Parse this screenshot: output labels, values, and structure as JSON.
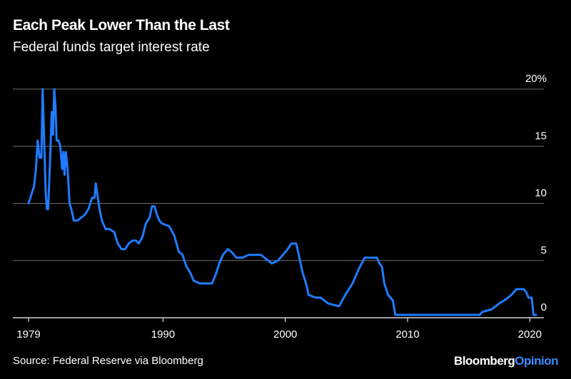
{
  "header": {
    "title": "Each Peak Lower Than the Last",
    "subtitle": "Federal funds target interest rate"
  },
  "footer": {
    "source": "Source: Federal Reserve via Bloomberg",
    "brand_main": "Bloomberg",
    "brand_accent": "Opinion"
  },
  "colors": {
    "background": "#000000",
    "line": "#1f7bff",
    "grid": "#6e6e6e",
    "text": "#ffffff",
    "brand_accent": "#3d8bff"
  },
  "chart_data": {
    "type": "line",
    "title": "Each Peak Lower Than the Last",
    "subtitle": "Federal funds target interest rate",
    "xlabel": "",
    "ylabel": "",
    "xlim": [
      1979,
      2021.5
    ],
    "ylim": [
      0,
      20
    ],
    "x_ticks": [
      1979,
      1990,
      2000,
      2010,
      2020
    ],
    "x_tick_labels": [
      "1979",
      "1990",
      "2000",
      "2010",
      "2020"
    ],
    "y_ticks": [
      0,
      5,
      10,
      15,
      20
    ],
    "y_tick_labels": [
      "0",
      "5",
      "10",
      "15",
      "20%"
    ],
    "grid": "horizontal",
    "series": [
      {
        "x": [
          1979.0,
          1979.15,
          1979.3,
          1979.45,
          1979.6,
          1979.75,
          1979.9,
          1980.05,
          1980.15,
          1980.25,
          1980.4,
          1980.5,
          1980.6,
          1980.75,
          1980.9,
          1981.0,
          1981.1,
          1981.2,
          1981.3,
          1981.45,
          1981.6,
          1981.75,
          1981.85,
          1981.95,
          1982.05,
          1982.2,
          1982.35,
          1982.5,
          1982.6,
          1982.7,
          1982.8,
          1982.9,
          1983.0,
          1983.3,
          1983.6,
          1983.9,
          1984.2,
          1984.4,
          1984.5,
          1984.6,
          1984.8,
          1985.0,
          1985.3,
          1985.6,
          1986.0,
          1986.3,
          1986.6,
          1986.9,
          1987.2,
          1987.5,
          1987.8,
          1988.0,
          1988.3,
          1988.6,
          1988.9,
          1989.1,
          1989.3,
          1989.5,
          1989.7,
          1989.9,
          1990.5,
          1990.9,
          1991.3,
          1991.6,
          1991.9,
          1992.2,
          1992.5,
          1993.0,
          1993.5,
          1994.0,
          1994.3,
          1994.6,
          1994.9,
          1995.3,
          1995.6,
          1996.0,
          1996.5,
          1997.0,
          1997.5,
          1998.0,
          1998.6,
          1998.9,
          1999.4,
          1999.8,
          2000.2,
          2000.5,
          2000.9,
          2001.1,
          2001.4,
          2001.7,
          2001.9,
          2002.5,
          2002.9,
          2003.5,
          2004.4,
          2004.9,
          2005.5,
          2006.0,
          2006.5,
          2007.5,
          2007.7,
          2007.9,
          2008.1,
          2008.4,
          2008.8,
          2009.0,
          2012.0,
          2015.9,
          2016.1,
          2016.9,
          2017.2,
          2017.5,
          2017.9,
          2018.2,
          2018.5,
          2018.9,
          2019.5,
          2019.7,
          2019.9,
          2020.15,
          2020.3,
          2020.5
        ],
        "y": [
          10.0,
          10.5,
          11.0,
          11.5,
          13.0,
          15.5,
          14.0,
          14.0,
          20.0,
          16.5,
          11.0,
          9.5,
          9.5,
          13.5,
          18.0,
          16.0,
          20.0,
          18.5,
          15.5,
          15.5,
          15.0,
          13.0,
          14.5,
          12.5,
          14.5,
          13.0,
          10.0,
          9.5,
          9.0,
          8.5,
          8.5,
          8.5,
          8.5,
          8.75,
          9.0,
          9.5,
          10.5,
          10.5,
          11.75,
          11.0,
          9.5,
          8.5,
          7.75,
          7.75,
          7.5,
          6.5,
          6.0,
          6.0,
          6.5,
          6.75,
          6.75,
          6.5,
          7.0,
          8.25,
          8.75,
          9.75,
          9.75,
          9.0,
          8.5,
          8.25,
          8.0,
          7.25,
          5.75,
          5.5,
          4.5,
          4.0,
          3.25,
          3.0,
          3.0,
          3.0,
          3.75,
          4.75,
          5.5,
          6.0,
          5.75,
          5.25,
          5.25,
          5.5,
          5.5,
          5.5,
          5.0,
          4.75,
          5.0,
          5.5,
          6.0,
          6.5,
          6.5,
          5.5,
          4.0,
          3.0,
          2.0,
          1.75,
          1.75,
          1.25,
          1.0,
          2.0,
          3.0,
          4.25,
          5.25,
          5.25,
          4.75,
          4.5,
          3.0,
          2.0,
          1.5,
          0.25,
          0.25,
          0.25,
          0.5,
          0.75,
          1.0,
          1.25,
          1.5,
          1.75,
          2.0,
          2.5,
          2.5,
          2.25,
          1.75,
          1.75,
          0.25,
          0.25
        ]
      }
    ]
  }
}
